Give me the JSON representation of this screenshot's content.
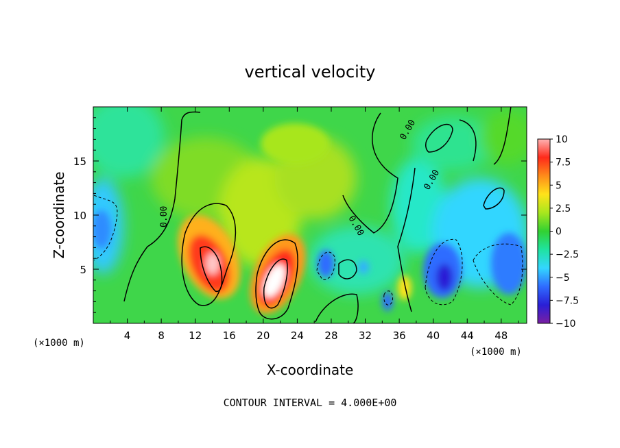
{
  "chart_data": {
    "type": "heatmap",
    "title": "vertical velocity",
    "xlabel": "X-coordinate",
    "ylabel": "Z-coordinate",
    "x_unit_left": "(×1000 m)",
    "x_unit_right": "(×1000 m)",
    "xlim": [
      0,
      51
    ],
    "ylim": [
      0,
      20
    ],
    "x_ticks": [
      "4",
      "8",
      "12",
      "16",
      "20",
      "24",
      "28",
      "32",
      "36",
      "40",
      "44",
      "48"
    ],
    "y_ticks": [
      "5",
      "10",
      "15"
    ],
    "colorbar": {
      "min": -10,
      "max": 10,
      "ticks": [
        "10",
        "7.5",
        "5",
        "2.5",
        "0",
        "−2.5",
        "−5",
        "−7.5",
        "−10"
      ],
      "colors": [
        "#7a1fa2",
        "#2a1fd6",
        "#2f6cff",
        "#33d6ff",
        "#1fe3a0",
        "#32d132",
        "#a8e61e",
        "#ffe31a",
        "#ff8c1a",
        "#ff2a1a",
        "#ffb3b3"
      ]
    },
    "footer": "CONTOUR INTERVAL = 4.000E+00",
    "contour_labels": [
      "0.00",
      "0.00",
      "0.00",
      "0.00"
    ],
    "features": [
      {
        "x": 13.5,
        "z": 5.8,
        "w": 10.0,
        "kind": "updraft"
      },
      {
        "x": 21.0,
        "z": 4.0,
        "w": 11.0,
        "kind": "updraft"
      },
      {
        "x": 27.0,
        "z": 5.5,
        "w": -6.0,
        "kind": "downdraft"
      },
      {
        "x": 40.0,
        "z": 4.5,
        "w": -8.0,
        "kind": "downdraft"
      },
      {
        "x": 47.0,
        "z": 5.5,
        "w": -6.0,
        "kind": "downdraft"
      },
      {
        "x": 0.5,
        "z": 8.5,
        "w": -5.0,
        "kind": "downdraft"
      }
    ]
  }
}
